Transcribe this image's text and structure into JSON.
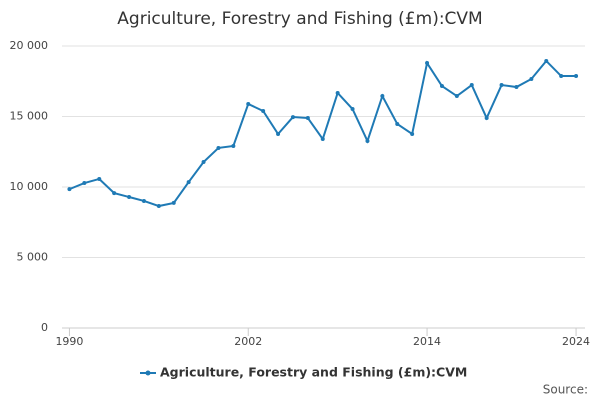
{
  "chart_data": {
    "type": "line",
    "title": "Agriculture, Forestry and Fishing (£m):CVM",
    "x": [
      1990,
      1991,
      1992,
      1993,
      1994,
      1995,
      1996,
      1997,
      1998,
      1999,
      2000,
      2001,
      2002,
      2003,
      2004,
      2005,
      2006,
      2007,
      2008,
      2009,
      2010,
      2011,
      2012,
      2013,
      2014,
      2015,
      2016,
      2017,
      2018,
      2019,
      2020,
      2021,
      2022,
      2023,
      2024
    ],
    "series": [
      {
        "name": "Agriculture, Forestry and Fishing (£m):CVM",
        "color": "#1f7ab5",
        "values": [
          9850,
          10280,
          10570,
          9570,
          9290,
          9010,
          8650,
          8870,
          10350,
          11770,
          12770,
          12910,
          15890,
          15390,
          13760,
          14960,
          14890,
          13400,
          16670,
          15530,
          13260,
          16450,
          14470,
          13760,
          18790,
          17160,
          16450,
          17230,
          14890,
          17230,
          17090,
          17660,
          18940,
          17870,
          17870
        ]
      }
    ],
    "xlim": [
      1989.5,
      2024.6
    ],
    "xticks": [
      1990,
      2002,
      2014,
      2024
    ],
    "ylim": [
      0,
      20000
    ],
    "yticks": [
      0,
      {
        "value": 5000,
        "label": "5 000"
      },
      {
        "value": 10000,
        "label": "10 000"
      },
      {
        "value": 15000,
        "label": "15 000"
      },
      {
        "value": 20000,
        "label": "20 000"
      }
    ],
    "grid": true,
    "source": "Source:"
  }
}
